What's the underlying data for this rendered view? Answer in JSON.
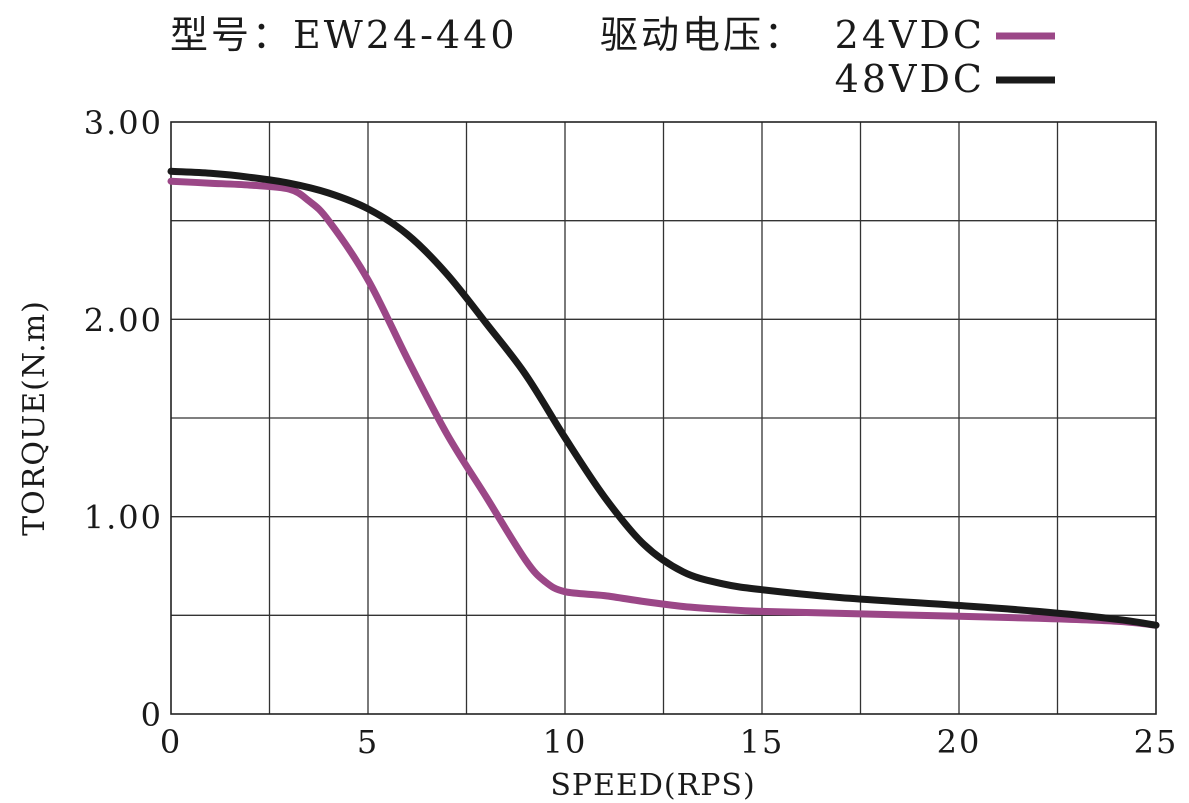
{
  "chart_data": {
    "type": "line",
    "title": "型号：EW24-440",
    "subtitle": "驱动电压：",
    "xlabel": "SPEED(RPS)",
    "ylabel": "TORQUE(N.m)",
    "xlim": [
      0,
      25
    ],
    "ylim": [
      0,
      3
    ],
    "grid": true,
    "legend_position": "top-right",
    "x_ticks": [
      0,
      5,
      10,
      15,
      20,
      25
    ],
    "x_tick_labels": [
      "0",
      "5",
      "10",
      "15",
      "20",
      "25"
    ],
    "y_ticks": [
      0,
      1,
      2,
      3
    ],
    "y_tick_labels": [
      "0",
      "1.00",
      "2.00",
      "3.00"
    ],
    "series": [
      {
        "name": "24VDC",
        "color": "#9b4787",
        "x": [
          0,
          1,
          2,
          3,
          3.5,
          4,
          5,
          6,
          7,
          8,
          9,
          9.5,
          10,
          11,
          12,
          13,
          14,
          15,
          17,
          20,
          22,
          24,
          25
        ],
        "y": [
          2.7,
          2.69,
          2.68,
          2.66,
          2.6,
          2.5,
          2.2,
          1.8,
          1.42,
          1.1,
          0.78,
          0.67,
          0.62,
          0.6,
          0.57,
          0.545,
          0.53,
          0.52,
          0.51,
          0.495,
          0.485,
          0.47,
          0.45
        ]
      },
      {
        "name": "48VDC",
        "color": "#1a1a1a",
        "x": [
          0,
          1,
          2,
          3,
          4,
          5,
          6,
          7,
          8,
          9,
          10,
          11,
          12,
          13,
          14,
          15,
          17,
          20,
          22,
          24,
          25
        ],
        "y": [
          2.75,
          2.74,
          2.72,
          2.69,
          2.64,
          2.56,
          2.43,
          2.23,
          1.98,
          1.72,
          1.4,
          1.1,
          0.86,
          0.72,
          0.66,
          0.63,
          0.59,
          0.55,
          0.52,
          0.48,
          0.45
        ]
      }
    ]
  }
}
